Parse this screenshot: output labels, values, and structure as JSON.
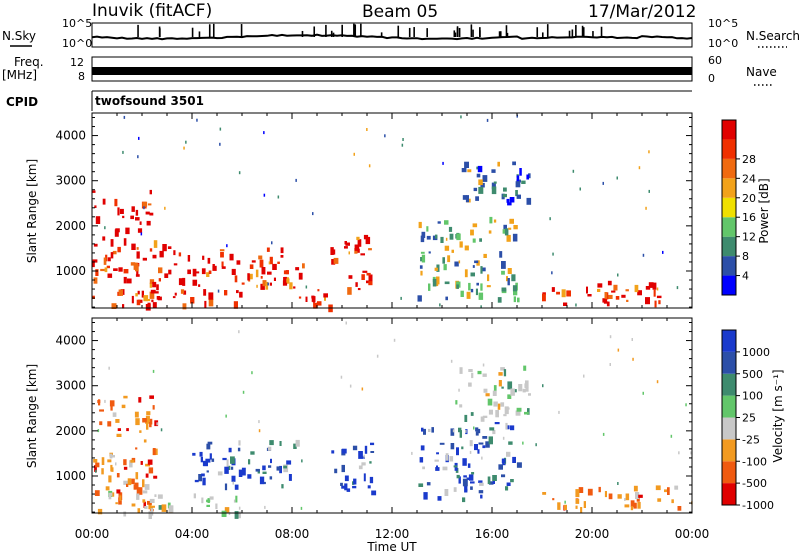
{
  "header": {
    "radar_title": "Inuvik (fitACF)",
    "beam_title": "Beam 05",
    "date_title": "17/Mar/2012"
  },
  "strips": {
    "nsky_label": "N.Sky",
    "nsearch_label": "N.Search",
    "nsky_ticks": [
      "10^5",
      "10^0"
    ],
    "nsearch_ticks": [
      "10^5",
      "10^0"
    ],
    "freq_label_1": "Freq.",
    "freq_label_2": "[MHz]",
    "freq_ticks": [
      "12",
      "8"
    ],
    "nave_label": "Nave",
    "nave_ticks": [
      "60",
      "0"
    ],
    "cpid_label": "CPID",
    "cpid_value": "twofsound 3501"
  },
  "colors": {
    "power": [
      "#0000ff",
      "#2c4fa8",
      "#3e8b6e",
      "#62c66a",
      "#f0e000",
      "#f2a21a",
      "#f06a10",
      "#f03000",
      "#e00000"
    ],
    "velocity": [
      "#e00000",
      "#f05a10",
      "#f29a20",
      "#c8c8c8",
      "#62c66a",
      "#3e8b6e",
      "#2c4fa8",
      "#1a3acc"
    ]
  },
  "chart_data": [
    {
      "type": "heatmap",
      "name": "power",
      "title": "",
      "xlabel": "",
      "ylabel": "Slant Range [km]",
      "xlim": [
        "00:00",
        "24:00"
      ],
      "ylim": [
        180,
        4500
      ],
      "yticks": [
        1000,
        2000,
        3000,
        4000
      ],
      "colorbar": {
        "label": "Power [dB]",
        "ticks": [
          4,
          8,
          12,
          16,
          20,
          24,
          28
        ]
      },
      "regions": [
        {
          "x": [
            0.0,
            2.5
          ],
          "y": [
            250,
            2800
          ],
          "level": "high"
        },
        {
          "x": [
            2.5,
            8.5
          ],
          "y": [
            700,
            1600
          ],
          "level": "high"
        },
        {
          "x": [
            2.0,
            6.0
          ],
          "y": [
            200,
            600
          ],
          "level": "high"
        },
        {
          "x": [
            8.0,
            9.5
          ],
          "y": [
            200,
            700
          ],
          "level": "high"
        },
        {
          "x": [
            9.5,
            11.2
          ],
          "y": [
            600,
            1800
          ],
          "level": "high"
        },
        {
          "x": [
            13.0,
            17.0
          ],
          "y": [
            400,
            2200
          ],
          "level": "mid"
        },
        {
          "x": [
            14.5,
            17.5
          ],
          "y": [
            2500,
            3500
          ],
          "level": "low"
        },
        {
          "x": [
            18.0,
            23.5
          ],
          "y": [
            300,
            800
          ],
          "level": "high"
        }
      ]
    },
    {
      "type": "heatmap",
      "name": "velocity",
      "title": "",
      "xlabel": "Time UT",
      "ylabel": "Slant Range [km]",
      "xlim": [
        "00:00",
        "24:00"
      ],
      "ylim": [
        180,
        4500
      ],
      "xticks": [
        "00:00",
        "04:00",
        "08:00",
        "12:00",
        "16:00",
        "20:00",
        "00:00"
      ],
      "yticks": [
        1000,
        2000,
        3000,
        4000
      ],
      "colorbar": {
        "label": "Velocity [m s⁻¹]",
        "ticks": [
          1000,
          500,
          100,
          25,
          -25,
          -100,
          -500,
          -1000
        ]
      },
      "regions": [
        {
          "x": [
            0.0,
            2.5
          ],
          "y": [
            250,
            2800
          ],
          "level": "negative"
        },
        {
          "x": [
            4.0,
            8.5
          ],
          "y": [
            800,
            1800
          ],
          "level": "positive"
        },
        {
          "x": [
            9.5,
            11.2
          ],
          "y": [
            600,
            1800
          ],
          "level": "positive"
        },
        {
          "x": [
            0.5,
            6.0
          ],
          "y": [
            200,
            700
          ],
          "level": "near-zero"
        },
        {
          "x": [
            13.0,
            17.0
          ],
          "y": [
            500,
            2200
          ],
          "level": "positive"
        },
        {
          "x": [
            14.5,
            17.5
          ],
          "y": [
            2300,
            3500
          ],
          "level": "near-zero"
        },
        {
          "x": [
            18.0,
            23.5
          ],
          "y": [
            300,
            800
          ],
          "level": "negative"
        }
      ]
    }
  ]
}
